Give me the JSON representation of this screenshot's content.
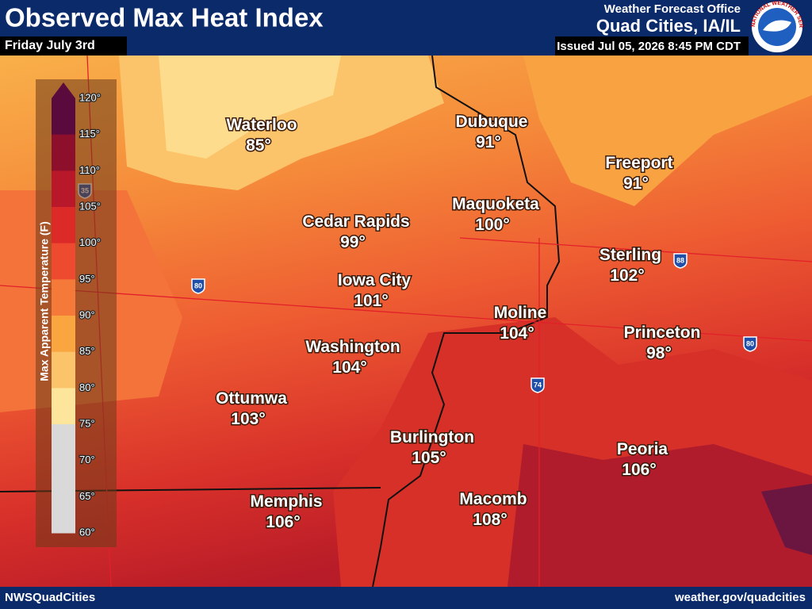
{
  "header": {
    "title": "Observed Max Heat Index",
    "date": "Friday July 3rd",
    "office": "Weather Forecast Office",
    "location": "Quad Cities, IA/IL",
    "issued": "Issued Jul 05, 2026 8:45 PM CDT",
    "logo_text": "NATIONAL WEATHER SERVICE"
  },
  "legend": {
    "title": "Max Apparent Temperature (F)",
    "ticks": [
      "120°",
      "115°",
      "110°",
      "105°",
      "100°",
      "95°",
      "90°",
      "85°",
      "80°",
      "75°",
      "70°",
      "65°",
      "60°"
    ]
  },
  "highways": [
    "35",
    "80",
    "74",
    "88",
    "80"
  ],
  "cities": [
    {
      "name": "Waterloo",
      "temp": "85°"
    },
    {
      "name": "Dubuque",
      "temp": "91°"
    },
    {
      "name": "Freeport",
      "temp": "91°"
    },
    {
      "name": "Cedar Rapids",
      "temp": "99°"
    },
    {
      "name": "Maquoketa",
      "temp": "100°"
    },
    {
      "name": "Sterling",
      "temp": "102°"
    },
    {
      "name": "Iowa City",
      "temp": "101°"
    },
    {
      "name": "Moline",
      "temp": "104°"
    },
    {
      "name": "Princeton",
      "temp": "98°"
    },
    {
      "name": "Washington",
      "temp": "104°"
    },
    {
      "name": "Ottumwa",
      "temp": "103°"
    },
    {
      "name": "Burlington",
      "temp": "105°"
    },
    {
      "name": "Peoria",
      "temp": "106°"
    },
    {
      "name": "Memphis",
      "temp": "106°"
    },
    {
      "name": "Macomb",
      "temp": "108°"
    }
  ],
  "footer": {
    "left": "NWSQuadCities",
    "right": "weather.gov/quadcities"
  }
}
